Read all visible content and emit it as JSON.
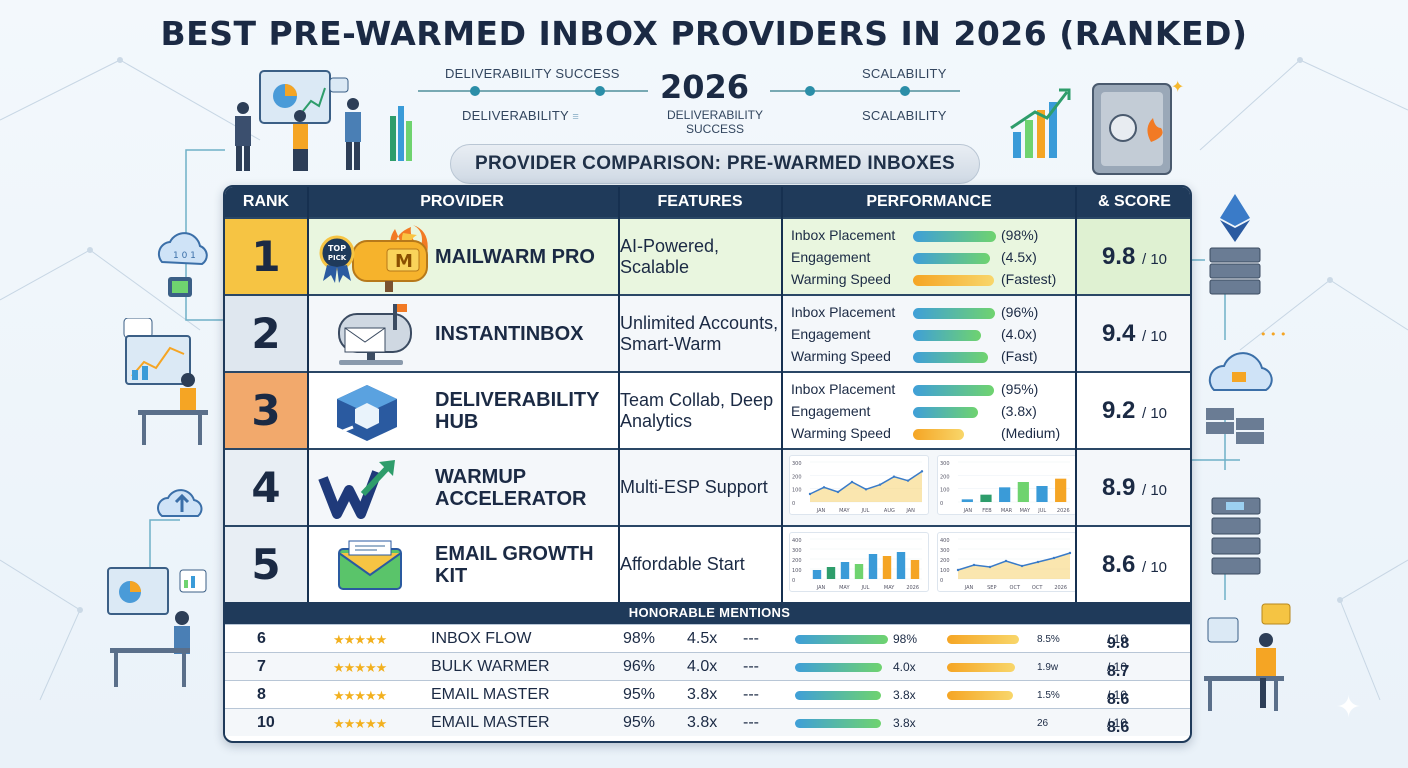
{
  "title": "Best Pre-Warmed Inbox Providers in 2026 (Ranked)",
  "timeline": {
    "top_left": "Deliverability Success",
    "top_right": "Scalability",
    "bottom_left": "Deliverability",
    "bottom_left_icon": "list-icon",
    "year": "2026",
    "center_sub": "Deliverability Success",
    "bottom_right": "Scalability"
  },
  "subtitle": "Provider Comparison: Pre-Warmed Inboxes",
  "headers": {
    "rank": "Rank",
    "provider": "Provider",
    "features": "Features",
    "performance": "Performance",
    "score": "& Score"
  },
  "badge": {
    "line1": "TOP",
    "line2": "PICK"
  },
  "metric_labels": {
    "placement": "Inbox Placement",
    "engagement": "Engagement",
    "speed": "Warming Speed"
  },
  "score_suffix": "/ 10",
  "providers": [
    {
      "rank": "1",
      "name": "MailWarm Pro",
      "features": "AI-Powered, Scalable",
      "placement": "(98%)",
      "engagement": "(4.5x)",
      "speed": "(Fastest)",
      "placement_pct": 98,
      "engagement_pct": 90,
      "speed_pct": 95,
      "score": "9.8",
      "logo": "flaming-mailbox-icon",
      "rank_color": "#f6c443",
      "row_color": "#e9f6df"
    },
    {
      "rank": "2",
      "name": "InstantInbox",
      "features": "Unlimited Accounts, Smart-Warm",
      "placement": "(96%)",
      "engagement": "(4.0x)",
      "speed": "(Fast)",
      "placement_pct": 96,
      "engagement_pct": 80,
      "speed_pct": 88,
      "score": "9.4",
      "logo": "mailbox-icon",
      "rank_color": "#dfe7ef",
      "row_color": "#f4f7fa"
    },
    {
      "rank": "3",
      "name": "Deliverability Hub",
      "features": "Team Collab, Deep Analytics",
      "placement": "(95%)",
      "engagement": "(3.8x)",
      "speed": "(Medium)",
      "placement_pct": 95,
      "engagement_pct": 76,
      "speed_pct": 60,
      "score": "9.2",
      "logo": "cube-logo-icon",
      "rank_color": "#f2a96c",
      "row_color": "#ffffff"
    },
    {
      "rank": "4",
      "name": "Warmup Accelerator",
      "features": "Multi-ESP Support",
      "score": "8.9",
      "logo": "w-arrow-logo-icon",
      "rank_color": "#e8eef4",
      "row_color": "#f4f7fa"
    },
    {
      "rank": "5",
      "name": "Email Growth Kit",
      "features": "Affordable Start",
      "score": "8.6",
      "logo": "envelope-icon",
      "rank_color": "#e8eef4",
      "row_color": "#ffffff"
    }
  ],
  "mini_charts": {
    "row4_line": {
      "y_ticks": [
        "300",
        "200",
        "100",
        "0"
      ],
      "x_ticks": [
        "JAN",
        "MAY",
        "JUL",
        "AUG",
        "JAN"
      ],
      "values": [
        60,
        110,
        75,
        150,
        95,
        130,
        190,
        160,
        230
      ]
    },
    "row4_bar": {
      "y_ticks": [
        "300",
        "200",
        "100",
        "0"
      ],
      "x_ticks": [
        "JAN",
        "FEB",
        "MAR",
        "MAY",
        "JUL",
        "2026"
      ],
      "values": [
        20,
        55,
        110,
        150,
        120,
        175
      ]
    },
    "row5_bar": {
      "y_ticks": [
        "400",
        "300",
        "200",
        "100",
        "0"
      ],
      "x_ticks": [
        "JAN",
        "MAY",
        "JUL",
        "MAY",
        "2026"
      ],
      "values": [
        90,
        120,
        170,
        150,
        250,
        230,
        270,
        190
      ]
    },
    "row5_line": {
      "y_ticks": [
        "400",
        "300",
        "200",
        "100",
        "0"
      ],
      "x_ticks": [
        "JAN",
        "SEP",
        "OCT",
        "OCT",
        "2026"
      ],
      "values": [
        90,
        140,
        120,
        180,
        130,
        170,
        210,
        260
      ]
    }
  },
  "honorable_title": "Honorable Mentions",
  "honorable": [
    {
      "rank": "6",
      "stars": "★★★★★",
      "name": "Inbox Flow",
      "pct": "98%",
      "mult": "4.5x",
      "dash": "---",
      "bar_label": "98%",
      "orange_label": "8.5%",
      "score": "9.8",
      "bar_pct": 98,
      "orange_pct": 85
    },
    {
      "rank": "7",
      "stars": "★★★★★",
      "name": "Bulk Warmer",
      "pct": "96%",
      "mult": "4.0x",
      "dash": "---",
      "bar_label": "4.0x",
      "orange_label": "1.9w",
      "score": "8.7",
      "bar_pct": 92,
      "orange_pct": 80
    },
    {
      "rank": "8",
      "stars": "★★★★★",
      "name": "Email Master",
      "pct": "95%",
      "mult": "3.8x",
      "dash": "---",
      "bar_label": "3.8x",
      "orange_label": "1.5%",
      "score": "8.6",
      "bar_pct": 90,
      "orange_pct": 78
    },
    {
      "rank": "10",
      "stars": "★★★★★",
      "name": "Email Master",
      "pct": "95%",
      "mult": "3.8x",
      "dash": "---",
      "bar_label": "3.8x",
      "orange_label": "26",
      "score": "8.6",
      "bar_pct": 90,
      "orange_pct": 0
    }
  ],
  "colors": {
    "navy": "#1f3a5a",
    "bar_gradient_start": "#3f9fd8",
    "bar_gradient_end": "#6fd36f",
    "orange_start": "#f5a524",
    "orange_end": "#f8d66a"
  }
}
